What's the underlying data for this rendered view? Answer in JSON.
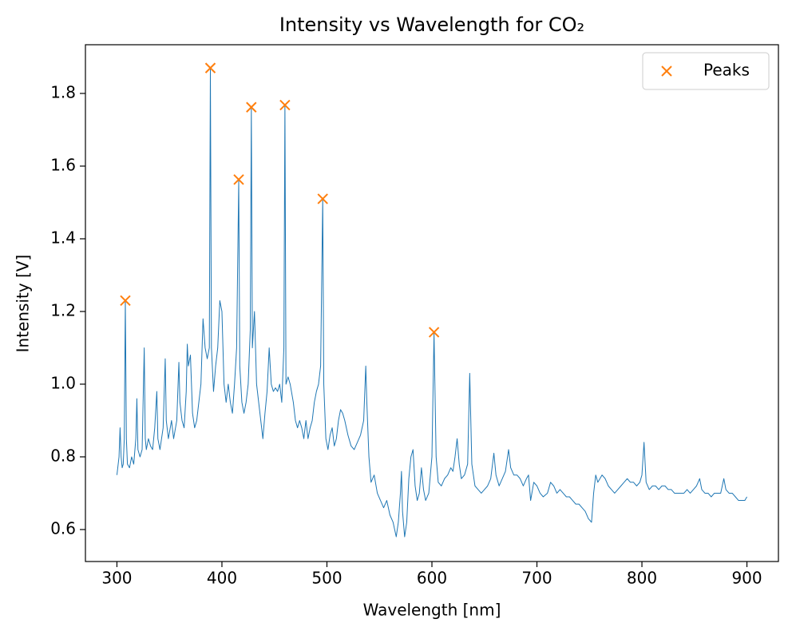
{
  "chart_data": {
    "type": "line",
    "title": "Intensity vs Wavelength for CO₂",
    "x_label": "Wavelength [nm]",
    "y_label": "Intensity [V]",
    "xlim": [
      270,
      930
    ],
    "ylim": [
      0.512,
      1.934
    ],
    "xticks": [
      300,
      400,
      500,
      600,
      700,
      800,
      900
    ],
    "yticks": [
      0.6,
      0.8,
      {
        "value": 1,
        "label": "1.0"
      },
      1.2,
      1.4,
      1.6,
      1.8
    ],
    "grid": false,
    "legend": "upper right",
    "series": [
      {
        "type": "line",
        "color": "#1f77b4",
        "x": [
          300,
          302,
          303,
          304,
          305,
          306,
          307,
          308,
          309,
          310,
          312,
          314,
          316,
          318,
          319,
          320,
          322,
          324,
          326,
          327,
          328,
          330,
          332,
          334,
          336,
          338,
          339,
          341,
          344,
          346,
          347,
          349,
          352,
          354,
          357,
          359,
          360,
          362,
          364,
          366,
          367,
          368,
          370,
          372,
          374,
          376,
          378,
          380,
          382,
          384,
          386,
          388,
          389,
          390,
          392,
          394,
          396,
          398,
          400,
          402,
          404,
          406,
          408,
          410,
          412,
          414,
          416,
          417,
          419,
          421,
          423,
          425,
          427,
          428,
          429,
          431,
          433,
          435,
          437,
          439,
          441,
          443,
          445,
          447,
          449,
          451,
          453,
          455,
          457,
          459,
          460,
          461,
          463,
          465,
          468,
          470,
          472,
          474,
          476,
          478,
          480,
          482,
          484,
          486,
          488,
          490,
          492,
          494,
          496,
          497,
          499,
          501,
          503,
          505,
          507,
          509,
          511,
          513,
          515,
          517,
          520,
          523,
          526,
          529,
          532,
          535,
          537,
          538,
          540,
          542,
          545,
          548,
          551,
          554,
          557,
          560,
          563,
          566,
          568,
          570,
          571,
          572,
          574,
          576,
          578,
          580,
          582,
          584,
          586,
          588,
          590,
          592,
          594,
          597,
          600,
          602,
          604,
          606,
          609,
          612,
          615,
          618,
          620,
          622,
          624,
          626,
          628,
          631,
          634,
          636,
          638,
          641,
          644,
          647,
          650,
          653,
          656,
          659,
          661,
          664,
          667,
          670,
          673,
          675,
          678,
          681,
          684,
          687,
          690,
          692,
          694,
          697,
          700,
          703,
          706,
          710,
          713,
          716,
          719,
          722,
          725,
          728,
          731,
          734,
          737,
          740,
          743,
          746,
          749,
          752,
          754,
          756,
          758,
          760,
          762,
          765,
          768,
          771,
          774,
          777,
          780,
          783,
          786,
          789,
          792,
          795,
          798,
          800,
          802,
          804,
          807,
          810,
          813,
          816,
          819,
          822,
          825,
          828,
          831,
          834,
          837,
          840,
          843,
          846,
          849,
          852,
          855,
          857,
          860,
          863,
          866,
          869,
          872,
          875,
          878,
          880,
          883,
          886,
          889,
          892,
          895,
          898,
          900
        ],
        "values": [
          0.75,
          0.8,
          0.88,
          0.8,
          0.77,
          0.78,
          0.85,
          1.23,
          0.85,
          0.78,
          0.77,
          0.8,
          0.78,
          0.85,
          0.96,
          0.82,
          0.8,
          0.82,
          1.1,
          0.85,
          0.82,
          0.85,
          0.83,
          0.82,
          0.88,
          0.98,
          0.85,
          0.82,
          0.88,
          1.07,
          0.9,
          0.85,
          0.9,
          0.85,
          0.9,
          1.06,
          0.95,
          0.9,
          0.88,
          0.98,
          1.11,
          1.05,
          1.08,
          0.92,
          0.88,
          0.9,
          0.95,
          1.0,
          1.18,
          1.1,
          1.07,
          1.1,
          1.87,
          1.1,
          0.98,
          1.05,
          1.1,
          1.23,
          1.2,
          1.0,
          0.95,
          1.0,
          0.95,
          0.92,
          1.0,
          1.1,
          1.56,
          1.05,
          0.95,
          0.92,
          0.95,
          1.0,
          1.15,
          1.76,
          1.1,
          1.2,
          1.0,
          0.95,
          0.9,
          0.85,
          0.92,
          0.98,
          1.1,
          1.0,
          0.98,
          0.99,
          0.98,
          1.0,
          0.95,
          1.1,
          1.77,
          1.0,
          1.02,
          1.0,
          0.95,
          0.9,
          0.88,
          0.9,
          0.88,
          0.85,
          0.9,
          0.85,
          0.88,
          0.9,
          0.95,
          0.98,
          1.0,
          1.05,
          1.51,
          1.0,
          0.85,
          0.82,
          0.86,
          0.88,
          0.83,
          0.85,
          0.9,
          0.93,
          0.92,
          0.9,
          0.86,
          0.83,
          0.82,
          0.84,
          0.86,
          0.9,
          1.05,
          0.95,
          0.8,
          0.73,
          0.75,
          0.7,
          0.68,
          0.66,
          0.68,
          0.64,
          0.62,
          0.58,
          0.62,
          0.7,
          0.76,
          0.65,
          0.58,
          0.62,
          0.74,
          0.8,
          0.82,
          0.72,
          0.68,
          0.7,
          0.77,
          0.71,
          0.68,
          0.7,
          0.8,
          1.14,
          0.8,
          0.73,
          0.72,
          0.74,
          0.75,
          0.77,
          0.76,
          0.8,
          0.85,
          0.78,
          0.74,
          0.75,
          0.78,
          1.03,
          0.78,
          0.72,
          0.71,
          0.7,
          0.71,
          0.72,
          0.74,
          0.81,
          0.75,
          0.72,
          0.74,
          0.76,
          0.82,
          0.77,
          0.75,
          0.75,
          0.74,
          0.72,
          0.74,
          0.75,
          0.68,
          0.73,
          0.72,
          0.7,
          0.69,
          0.7,
          0.73,
          0.72,
          0.7,
          0.71,
          0.7,
          0.69,
          0.69,
          0.68,
          0.67,
          0.67,
          0.66,
          0.65,
          0.63,
          0.62,
          0.7,
          0.75,
          0.73,
          0.74,
          0.75,
          0.74,
          0.72,
          0.71,
          0.7,
          0.71,
          0.72,
          0.73,
          0.74,
          0.73,
          0.73,
          0.72,
          0.73,
          0.75,
          0.84,
          0.73,
          0.71,
          0.72,
          0.72,
          0.71,
          0.72,
          0.72,
          0.71,
          0.71,
          0.7,
          0.7,
          0.7,
          0.7,
          0.71,
          0.7,
          0.71,
          0.72,
          0.74,
          0.71,
          0.7,
          0.7,
          0.69,
          0.7,
          0.7,
          0.7,
          0.74,
          0.71,
          0.7,
          0.7,
          0.69,
          0.68,
          0.68,
          0.68,
          0.69
        ]
      },
      {
        "type": "scatter",
        "name": "Peaks",
        "marker": "x",
        "color": "#ff7f0e",
        "x": [
          308,
          389,
          416,
          428,
          460,
          496,
          602
        ],
        "values": [
          1.23,
          1.87,
          1.563,
          1.762,
          1.768,
          1.51,
          1.143
        ]
      }
    ]
  }
}
